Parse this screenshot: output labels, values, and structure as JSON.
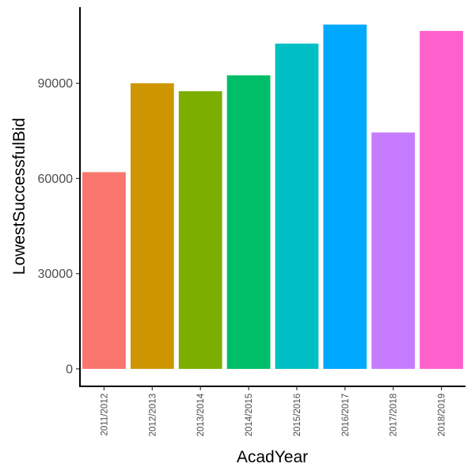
{
  "chart_data": {
    "type": "bar",
    "xlabel": "AcadYear",
    "ylabel": "LowestSuccessfulBid",
    "categories": [
      "2011/2012",
      "2012/2013",
      "2013/2014",
      "2014/2015",
      "2015/2016",
      "2016/2017",
      "2017/2018",
      "2018/2019"
    ],
    "values": [
      62000,
      90000,
      87500,
      92500,
      102500,
      108500,
      74500,
      106500
    ],
    "colors": [
      "#F8766D",
      "#CD9600",
      "#7CAE00",
      "#00BE67",
      "#00BFC4",
      "#00A9FF",
      "#C77CFF",
      "#FF61CC"
    ],
    "yticks": [
      0,
      30000,
      60000,
      90000
    ],
    "ylim": [
      -5500,
      114000
    ],
    "grid": false,
    "legend": "none"
  }
}
